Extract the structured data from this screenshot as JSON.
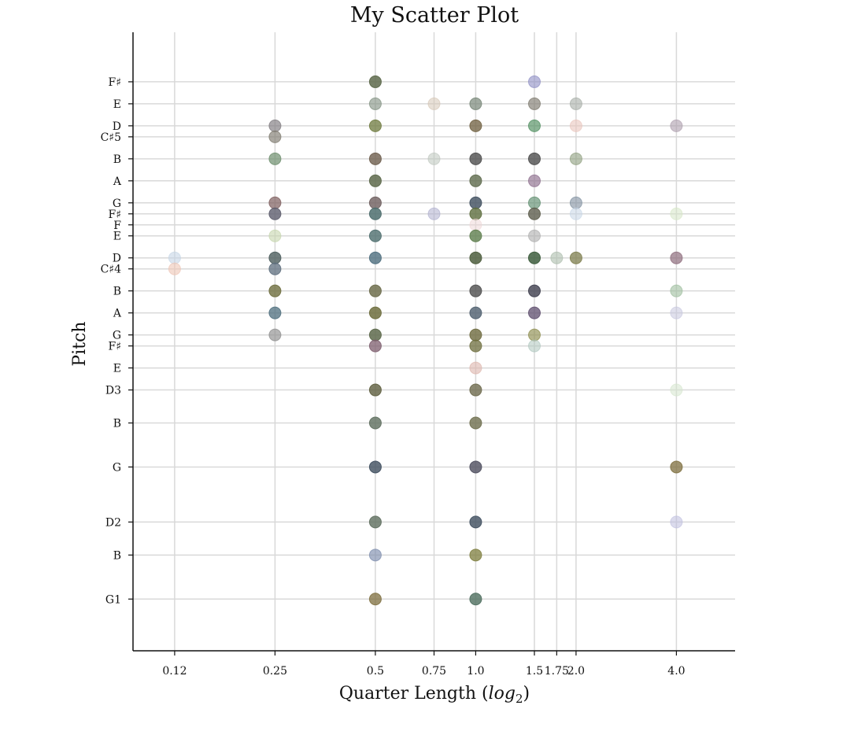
{
  "chart_data": {
    "type": "scatter",
    "title": "My Scatter Plot",
    "xlabel": "Quarter Length (",
    "xlabel_math": "log",
    "xlabel_sub": "2",
    "xlabel_end": ")",
    "ylabel": "Pitch",
    "x_scale": "log2",
    "grid": true,
    "x_ticks": [
      {
        "value": 0.125,
        "label": "0.12"
      },
      {
        "value": 0.25,
        "label": "0.25"
      },
      {
        "value": 0.5,
        "label": "0.5"
      },
      {
        "value": 0.75,
        "label": "0.75"
      },
      {
        "value": 1.0,
        "label": "1.0"
      },
      {
        "value": 1.5,
        "label": "1.5"
      },
      {
        "value": 1.75,
        "label": "1.75"
      },
      {
        "value": 2.0,
        "label": "2.0"
      },
      {
        "value": 4.0,
        "label": "4.0"
      }
    ],
    "y_ticks": [
      {
        "value": 31,
        "label": "G1"
      },
      {
        "value": 35,
        "label": "B"
      },
      {
        "value": 38,
        "label": "D2"
      },
      {
        "value": 43,
        "label": "G"
      },
      {
        "value": 47,
        "label": "B"
      },
      {
        "value": 50,
        "label": "D3"
      },
      {
        "value": 52,
        "label": "E"
      },
      {
        "value": 54,
        "label": "F♯"
      },
      {
        "value": 55,
        "label": "G"
      },
      {
        "value": 57,
        "label": "A"
      },
      {
        "value": 59,
        "label": "B"
      },
      {
        "value": 61,
        "label": "C♯4"
      },
      {
        "value": 62,
        "label": "D"
      },
      {
        "value": 64,
        "label": "E"
      },
      {
        "value": 65,
        "label": "F"
      },
      {
        "value": 66,
        "label": "F♯"
      },
      {
        "value": 67,
        "label": "G"
      },
      {
        "value": 69,
        "label": "A"
      },
      {
        "value": 71,
        "label": "B"
      },
      {
        "value": 73,
        "label": "C♯5"
      },
      {
        "value": 74,
        "label": "D"
      },
      {
        "value": 76,
        "label": "E"
      },
      {
        "value": 78,
        "label": "F♯"
      }
    ],
    "xlim": [
      0.09375,
      6.0
    ],
    "ylim": [
      26.3,
      82.5
    ],
    "points": [
      {
        "x": 0.5,
        "y": 78,
        "color": "#5e6a4c",
        "alpha": 0.85
      },
      {
        "x": 1.5,
        "y": 78,
        "color": "#8e8ec4",
        "alpha": 0.6
      },
      {
        "x": 0.5,
        "y": 76,
        "color": "#7e8e7e",
        "alpha": 0.6
      },
      {
        "x": 0.75,
        "y": 76,
        "color": "#d6c6b6",
        "alpha": 0.55
      },
      {
        "x": 1.0,
        "y": 76,
        "color": "#6e7e6e",
        "alpha": 0.65
      },
      {
        "x": 1.5,
        "y": 76,
        "color": "#7e7a6e",
        "alpha": 0.65
      },
      {
        "x": 2.0,
        "y": 76,
        "color": "#a6aea6",
        "alpha": 0.6
      },
      {
        "x": 0.25,
        "y": 74,
        "color": "#7e7a7e",
        "alpha": 0.65
      },
      {
        "x": 0.5,
        "y": 74,
        "color": "#6e7a3e",
        "alpha": 0.75
      },
      {
        "x": 1.0,
        "y": 74,
        "color": "#6e5e3e",
        "alpha": 0.75
      },
      {
        "x": 1.5,
        "y": 74,
        "color": "#4e8e5e",
        "alpha": 0.65
      },
      {
        "x": 2.0,
        "y": 74,
        "color": "#eac6be",
        "alpha": 0.6
      },
      {
        "x": 4.0,
        "y": 74,
        "color": "#ae9eae",
        "alpha": 0.6
      },
      {
        "x": 0.25,
        "y": 73,
        "color": "#7e7a6e",
        "alpha": 0.65
      },
      {
        "x": 0.25,
        "y": 71,
        "color": "#6e8e6e",
        "alpha": 0.7
      },
      {
        "x": 0.5,
        "y": 71,
        "color": "#6e5e4e",
        "alpha": 0.8
      },
      {
        "x": 0.75,
        "y": 71,
        "color": "#bec6be",
        "alpha": 0.55
      },
      {
        "x": 1.0,
        "y": 71,
        "color": "#4e4e4e",
        "alpha": 0.8
      },
      {
        "x": 1.5,
        "y": 71,
        "color": "#4e4e4e",
        "alpha": 0.8
      },
      {
        "x": 2.0,
        "y": 71,
        "color": "#8e9e7e",
        "alpha": 0.6
      },
      {
        "x": 0.5,
        "y": 69,
        "color": "#5e6a4c",
        "alpha": 0.85
      },
      {
        "x": 1.0,
        "y": 69,
        "color": "#5e6a4c",
        "alpha": 0.8
      },
      {
        "x": 1.5,
        "y": 69,
        "color": "#8e6e8e",
        "alpha": 0.65
      },
      {
        "x": 0.25,
        "y": 67,
        "color": "#7e5e5e",
        "alpha": 0.7
      },
      {
        "x": 0.5,
        "y": 67,
        "color": "#6e5e5e",
        "alpha": 0.8
      },
      {
        "x": 1.0,
        "y": 67,
        "color": "#3e4e5e",
        "alpha": 0.8
      },
      {
        "x": 1.5,
        "y": 67,
        "color": "#5e8e6e",
        "alpha": 0.65
      },
      {
        "x": 2.0,
        "y": 67,
        "color": "#7e8e9e",
        "alpha": 0.6
      },
      {
        "x": 0.25,
        "y": 66,
        "color": "#5e5e6e",
        "alpha": 0.8
      },
      {
        "x": 0.5,
        "y": 66,
        "color": "#4e6e6e",
        "alpha": 0.85
      },
      {
        "x": 0.75,
        "y": 66,
        "color": "#aeaece",
        "alpha": 0.55
      },
      {
        "x": 1.0,
        "y": 66,
        "color": "#5e6e3e",
        "alpha": 0.8
      },
      {
        "x": 1.5,
        "y": 66,
        "color": "#5e5e4e",
        "alpha": 0.8
      },
      {
        "x": 2.0,
        "y": 66,
        "color": "#c6d6e6",
        "alpha": 0.55
      },
      {
        "x": 4.0,
        "y": 66,
        "color": "#d6e6c6",
        "alpha": 0.55
      },
      {
        "x": 1.0,
        "y": 65,
        "color": "#eed6d6",
        "alpha": 0.5
      },
      {
        "x": 0.25,
        "y": 64,
        "color": "#c6d6ae",
        "alpha": 0.6
      },
      {
        "x": 0.5,
        "y": 64,
        "color": "#4e6e6e",
        "alpha": 0.8
      },
      {
        "x": 1.0,
        "y": 64,
        "color": "#5e7e4e",
        "alpha": 0.8
      },
      {
        "x": 1.5,
        "y": 64,
        "color": "#aeaeae",
        "alpha": 0.6
      },
      {
        "x": 0.125,
        "y": 62,
        "color": "#c6d6e6",
        "alpha": 0.6
      },
      {
        "x": 0.25,
        "y": 62,
        "color": "#4e5e5e",
        "alpha": 0.8
      },
      {
        "x": 0.5,
        "y": 62,
        "color": "#4e6e7e",
        "alpha": 0.8
      },
      {
        "x": 1.0,
        "y": 62,
        "color": "#4e5e3e",
        "alpha": 0.85
      },
      {
        "x": 1.5,
        "y": 62,
        "color": "#3e5e3e",
        "alpha": 0.85
      },
      {
        "x": 1.75,
        "y": 62,
        "color": "#aebeae",
        "alpha": 0.6
      },
      {
        "x": 2.0,
        "y": 62,
        "color": "#7e7e4e",
        "alpha": 0.75
      },
      {
        "x": 4.0,
        "y": 62,
        "color": "#8e6e7e",
        "alpha": 0.7
      },
      {
        "x": 0.125,
        "y": 61,
        "color": "#eec6b6",
        "alpha": 0.6
      },
      {
        "x": 0.25,
        "y": 61,
        "color": "#5e6e7e",
        "alpha": 0.75
      },
      {
        "x": 0.25,
        "y": 59,
        "color": "#6e6e3e",
        "alpha": 0.8
      },
      {
        "x": 0.5,
        "y": 59,
        "color": "#6e6e4e",
        "alpha": 0.85
      },
      {
        "x": 1.0,
        "y": 59,
        "color": "#4e4e4e",
        "alpha": 0.8
      },
      {
        "x": 1.5,
        "y": 59,
        "color": "#3e3e4e",
        "alpha": 0.8
      },
      {
        "x": 4.0,
        "y": 59,
        "color": "#9ebe9e",
        "alpha": 0.6
      },
      {
        "x": 0.25,
        "y": 57,
        "color": "#4e6e7e",
        "alpha": 0.75
      },
      {
        "x": 0.5,
        "y": 57,
        "color": "#6e6e3e",
        "alpha": 0.85
      },
      {
        "x": 1.0,
        "y": 57,
        "color": "#4e5e6e",
        "alpha": 0.8
      },
      {
        "x": 1.5,
        "y": 57,
        "color": "#5e4e6e",
        "alpha": 0.75
      },
      {
        "x": 4.0,
        "y": 57,
        "color": "#c6c6de",
        "alpha": 0.55
      },
      {
        "x": 0.25,
        "y": 55,
        "color": "#8e8e8e",
        "alpha": 0.65
      },
      {
        "x": 0.5,
        "y": 55,
        "color": "#5e6a4c",
        "alpha": 0.85
      },
      {
        "x": 1.0,
        "y": 55,
        "color": "#6e6a3e",
        "alpha": 0.8
      },
      {
        "x": 1.5,
        "y": 55,
        "color": "#8e8e4e",
        "alpha": 0.65
      },
      {
        "x": 0.5,
        "y": 54,
        "color": "#7e5e6e",
        "alpha": 0.75
      },
      {
        "x": 1.0,
        "y": 54,
        "color": "#6e6e3e",
        "alpha": 0.75
      },
      {
        "x": 1.5,
        "y": 54,
        "color": "#aec6be",
        "alpha": 0.55
      },
      {
        "x": 1.0,
        "y": 52,
        "color": "#deb6ae",
        "alpha": 0.6
      },
      {
        "x": 0.5,
        "y": 50,
        "color": "#5e5e3e",
        "alpha": 0.8
      },
      {
        "x": 1.0,
        "y": 50,
        "color": "#6e6a4e",
        "alpha": 0.8
      },
      {
        "x": 4.0,
        "y": 50,
        "color": "#d6e6ce",
        "alpha": 0.55
      },
      {
        "x": 0.5,
        "y": 47,
        "color": "#5e6e5e",
        "alpha": 0.8
      },
      {
        "x": 1.0,
        "y": 47,
        "color": "#6e6e4e",
        "alpha": 0.8
      },
      {
        "x": 0.5,
        "y": 43,
        "color": "#3e4e5e",
        "alpha": 0.8
      },
      {
        "x": 1.0,
        "y": 43,
        "color": "#4e4e5e",
        "alpha": 0.8
      },
      {
        "x": 4.0,
        "y": 43,
        "color": "#7e6e3e",
        "alpha": 0.75
      },
      {
        "x": 0.5,
        "y": 38,
        "color": "#5e6e5e",
        "alpha": 0.8
      },
      {
        "x": 1.0,
        "y": 38,
        "color": "#3e4e5e",
        "alpha": 0.8
      },
      {
        "x": 4.0,
        "y": 38,
        "color": "#bebede",
        "alpha": 0.55
      },
      {
        "x": 0.5,
        "y": 35,
        "color": "#7e8eae",
        "alpha": 0.65
      },
      {
        "x": 1.0,
        "y": 35,
        "color": "#7e7e3e",
        "alpha": 0.75
      },
      {
        "x": 0.5,
        "y": 31,
        "color": "#7e6e3e",
        "alpha": 0.75
      },
      {
        "x": 1.0,
        "y": 31,
        "color": "#4e6e5e",
        "alpha": 0.8
      }
    ]
  }
}
